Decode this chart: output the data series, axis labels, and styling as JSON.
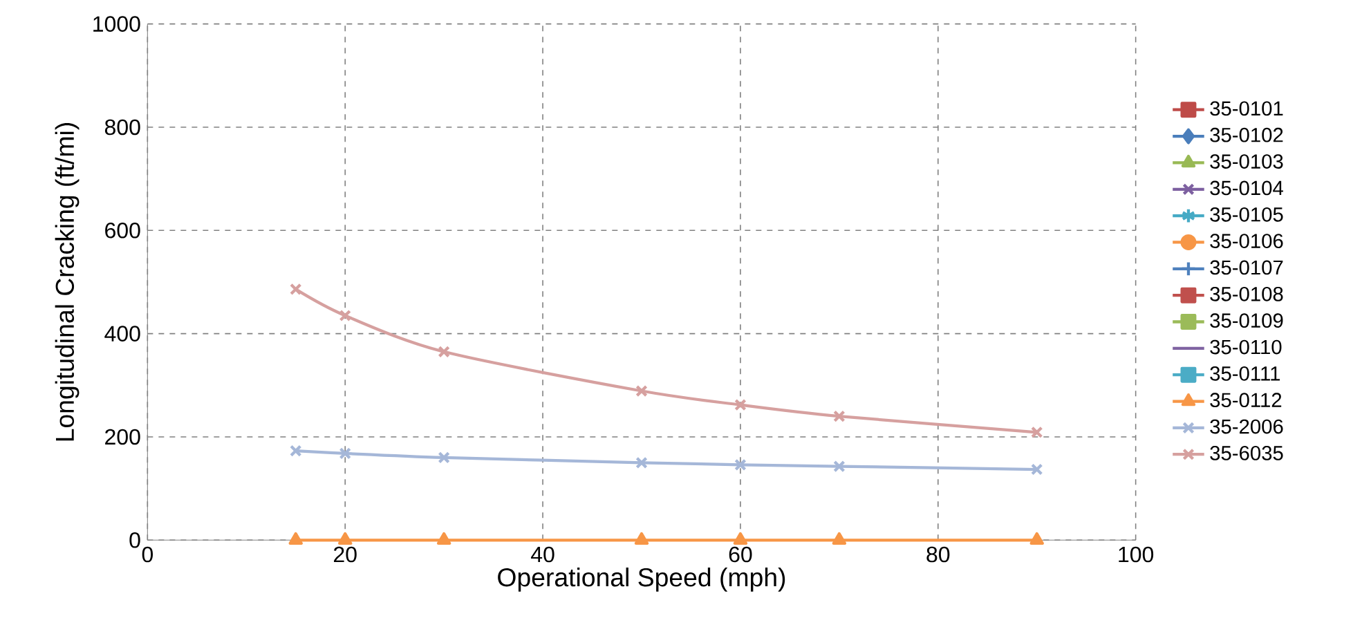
{
  "chart_data": {
    "type": "line",
    "xlabel": "Operational Speed (mph)",
    "ylabel": "Longitudinal Cracking (ft/mi)",
    "xlim": [
      0,
      100
    ],
    "ylim": [
      0,
      1000
    ],
    "xticks": [
      0,
      20,
      40,
      60,
      80,
      100
    ],
    "yticks": [
      0,
      200,
      400,
      600,
      800,
      1000
    ],
    "grid": true,
    "legend": "right",
    "x": [
      15,
      20,
      30,
      50,
      60,
      70,
      90
    ],
    "series": [
      {
        "name": "35-0101",
        "color": "#be4b48",
        "marker": "square",
        "values": [
          null,
          null,
          null,
          null,
          null,
          null,
          null
        ]
      },
      {
        "name": "35-0102",
        "color": "#4a7ebb",
        "marker": "diamond",
        "values": [
          null,
          null,
          null,
          null,
          null,
          null,
          null
        ]
      },
      {
        "name": "35-0103",
        "color": "#98b954",
        "marker": "triangle",
        "values": [
          null,
          null,
          null,
          null,
          null,
          null,
          null
        ]
      },
      {
        "name": "35-0104",
        "color": "#7d60a0",
        "marker": "cross",
        "values": [
          null,
          null,
          null,
          null,
          null,
          null,
          null
        ]
      },
      {
        "name": "35-0105",
        "color": "#46aac5",
        "marker": "star",
        "values": [
          null,
          null,
          null,
          null,
          null,
          null,
          null
        ]
      },
      {
        "name": "35-0106",
        "color": "#f79646",
        "marker": "circle",
        "values": [
          null,
          null,
          null,
          null,
          null,
          null,
          null
        ]
      },
      {
        "name": "35-0107",
        "color": "#4f81bd",
        "marker": "plus",
        "values": [
          null,
          null,
          null,
          null,
          null,
          null,
          null
        ]
      },
      {
        "name": "35-0108",
        "color": "#c0504d",
        "marker": "dash",
        "values": [
          null,
          null,
          null,
          null,
          null,
          null,
          null
        ]
      },
      {
        "name": "35-0109",
        "color": "#9bbb59",
        "marker": "dash",
        "values": [
          null,
          null,
          null,
          null,
          null,
          null,
          null
        ]
      },
      {
        "name": "35-0110",
        "color": "#8064a2",
        "marker": "none",
        "values": [
          null,
          null,
          null,
          null,
          null,
          null,
          null
        ]
      },
      {
        "name": "35-0111",
        "color": "#4bacc6",
        "marker": "square",
        "values": [
          null,
          null,
          null,
          null,
          null,
          null,
          null
        ]
      },
      {
        "name": "35-0112",
        "color": "#f79646",
        "marker": "triangle",
        "values": [
          0,
          0,
          0,
          0,
          0,
          0,
          0
        ]
      },
      {
        "name": "35-2006",
        "color": "#a5b7d8",
        "marker": "cross",
        "values": [
          173,
          168,
          160,
          150,
          146,
          143,
          137
        ]
      },
      {
        "name": "35-6035",
        "color": "#d6a09f",
        "marker": "cross",
        "values": [
          486,
          435,
          365,
          289,
          262,
          240,
          209
        ]
      }
    ]
  }
}
